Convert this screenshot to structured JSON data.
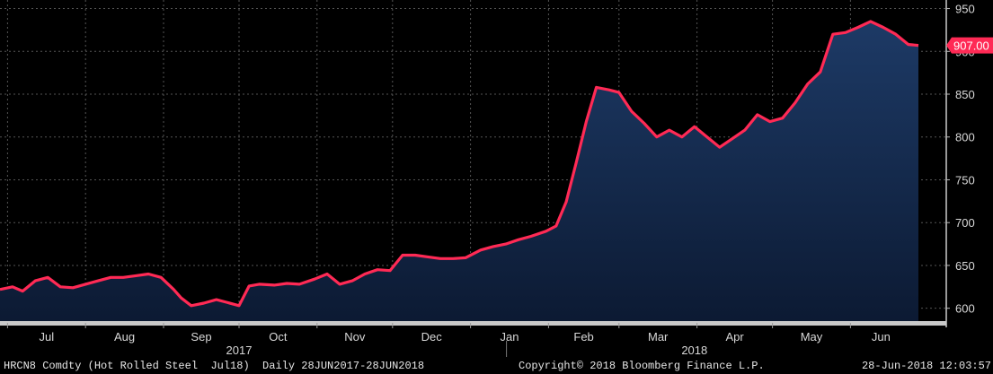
{
  "footer": {
    "ticker": "HRCN8 Comdty (Hot Rolled Steel  Jul18)  Daily 28JUN2017-28JUN2018",
    "copyright": "Copyright© 2018 Bloomberg Finance L.P.",
    "timestamp": "28-Jun-2018 12:03:57"
  },
  "chart_data": {
    "type": "area",
    "title": "",
    "xlabel": "",
    "ylabel": "",
    "ylim": [
      585,
      960
    ],
    "yticks": [
      600,
      650,
      700,
      750,
      800,
      850,
      900,
      950
    ],
    "grid": true,
    "month_labels": [
      "Jul",
      "Aug",
      "Sep",
      "Oct",
      "Nov",
      "Dec",
      "Jan",
      "Feb",
      "Mar",
      "Apr",
      "May",
      "Jun"
    ],
    "year_labels": [
      "2017",
      "2018"
    ],
    "last_value_label": "907.00",
    "colors": {
      "line": "#ff2a55",
      "area_top": "#1d3a66",
      "area_bottom": "#0c1a33",
      "grid": "#555555",
      "background": "#000000"
    },
    "series": [
      {
        "x": [
          "2017-06-28",
          "2017-07-03",
          "2017-07-07",
          "2017-07-12",
          "2017-07-17",
          "2017-07-22",
          "2017-07-27",
          "2017-08-01",
          "2017-08-06",
          "2017-08-11",
          "2017-08-16",
          "2017-08-21",
          "2017-08-26",
          "2017-08-31",
          "2017-09-05",
          "2017-09-08",
          "2017-09-12",
          "2017-09-17",
          "2017-09-22",
          "2017-09-26",
          "2017-10-01",
          "2017-10-05",
          "2017-10-09",
          "2017-10-15",
          "2017-10-20",
          "2017-10-25",
          "2017-10-31",
          "2017-11-05",
          "2017-11-10",
          "2017-11-15",
          "2017-11-20",
          "2017-11-25",
          "2017-11-30",
          "2017-12-05",
          "2017-12-10",
          "2017-12-15",
          "2017-12-20",
          "2017-12-25",
          "2017-12-30",
          "2018-01-05",
          "2018-01-10",
          "2018-01-15",
          "2018-01-20",
          "2018-01-25",
          "2018-01-31",
          "2018-02-04",
          "2018-02-08",
          "2018-02-12",
          "2018-02-16",
          "2018-02-20",
          "2018-02-25",
          "2018-03-01",
          "2018-03-06",
          "2018-03-11",
          "2018-03-16",
          "2018-03-21",
          "2018-03-26",
          "2018-03-31",
          "2018-04-05",
          "2018-04-10",
          "2018-04-15",
          "2018-04-20",
          "2018-04-25",
          "2018-04-30",
          "2018-05-05",
          "2018-05-10",
          "2018-05-15",
          "2018-05-20",
          "2018-05-25",
          "2018-05-30",
          "2018-06-04",
          "2018-06-09",
          "2018-06-14",
          "2018-06-19",
          "2018-06-24",
          "2018-06-28"
        ],
        "values": [
          622,
          625,
          620,
          632,
          636,
          625,
          624,
          628,
          632,
          636,
          636,
          638,
          640,
          636,
          622,
          612,
          603,
          606,
          610,
          607,
          603,
          626,
          628,
          627,
          629,
          628,
          634,
          640,
          628,
          632,
          640,
          645,
          644,
          662,
          662,
          660,
          658,
          658,
          659,
          668,
          672,
          675,
          680,
          684,
          690,
          696,
          724,
          770,
          818,
          858,
          855,
          852,
          830,
          816,
          800,
          808,
          800,
          812,
          800,
          788,
          798,
          808,
          826,
          818,
          822,
          840,
          862,
          876,
          920,
          922,
          928,
          935,
          928,
          920,
          908,
          907
        ]
      }
    ]
  }
}
